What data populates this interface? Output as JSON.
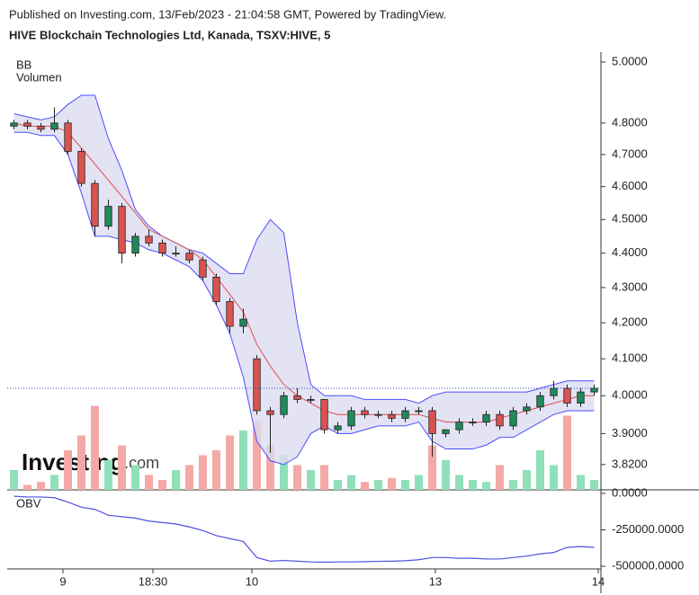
{
  "header": {
    "published": "Published on Investing.com, 13/Feb/2023 - 21:04:58 GMT, Powered by TradingView.",
    "symbol": "HIVE Blockchain Technologies Ltd, Kanada, TSXV:HIVE, 5"
  },
  "chart_data": [
    {
      "type": "candlestick",
      "indicators": [
        "BB",
        "Volumen"
      ],
      "watermark": {
        "brand": "Investing",
        "suffix": ".com"
      },
      "log_scale": true,
      "xlim": [
        0,
        44
      ],
      "ylim": [
        3.756,
        5.033
      ],
      "yticks": [
        {
          "value": 5,
          "label": "5.0000"
        },
        {
          "value": 4.8,
          "label": "4.8000"
        },
        {
          "value": 4.7,
          "label": "4.7000"
        },
        {
          "value": 4.6,
          "label": "4.6000"
        },
        {
          "value": 4.5,
          "label": "4.5000"
        },
        {
          "value": 4.4,
          "label": "4.4000"
        },
        {
          "value": 4.3,
          "label": "4.3000"
        },
        {
          "value": 4.2,
          "label": "4.2000"
        },
        {
          "value": 4.1,
          "label": "4.1000"
        },
        {
          "value": 4,
          "label": "4.0000"
        },
        {
          "value": 3.9,
          "label": "3.9000"
        },
        {
          "value": 3.82,
          "label": "3.8200"
        }
      ],
      "up_color": "#1f8a5b",
      "down_color": "#d9534f",
      "open": [
        4.79,
        4.8,
        4.79,
        4.78,
        4.8,
        4.71,
        4.61,
        4.48,
        4.54,
        4.4,
        4.45,
        4.43,
        4.4,
        4.4,
        4.38,
        4.33,
        4.26,
        4.19,
        4.1,
        3.96,
        3.95,
        4.0,
        3.99,
        3.99,
        3.91,
        3.92,
        3.96,
        3.95,
        3.95,
        3.94,
        3.96,
        3.96,
        3.9,
        3.91,
        3.93,
        3.93,
        3.95,
        3.92,
        3.96,
        3.97,
        4.0,
        4.02,
        3.98,
        4.01
      ],
      "high": [
        4.81,
        4.81,
        4.8,
        4.85,
        4.81,
        4.72,
        4.62,
        4.56,
        4.55,
        4.46,
        4.47,
        4.44,
        4.42,
        4.41,
        4.39,
        4.34,
        4.27,
        4.24,
        4.11,
        3.97,
        4.01,
        4.02,
        4.0,
        3.99,
        3.93,
        3.97,
        3.97,
        3.96,
        3.96,
        3.97,
        3.97,
        3.97,
        3.91,
        3.94,
        3.94,
        3.96,
        3.96,
        3.97,
        3.98,
        4.01,
        4.04,
        4.03,
        4.02,
        4.03
      ],
      "low": [
        4.78,
        4.78,
        4.77,
        4.77,
        4.7,
        4.6,
        4.45,
        4.47,
        4.37,
        4.39,
        4.42,
        4.39,
        4.39,
        4.37,
        4.32,
        4.25,
        4.17,
        4.17,
        3.95,
        3.85,
        3.94,
        3.98,
        3.98,
        3.9,
        3.9,
        3.91,
        3.94,
        3.94,
        3.93,
        3.93,
        3.95,
        3.84,
        3.89,
        3.9,
        3.92,
        3.92,
        3.91,
        3.91,
        3.95,
        3.96,
        3.99,
        3.97,
        3.97,
        4.0
      ],
      "close": [
        4.8,
        4.79,
        4.78,
        4.8,
        4.71,
        4.61,
        4.48,
        4.54,
        4.4,
        4.45,
        4.43,
        4.4,
        4.4,
        4.38,
        4.33,
        4.26,
        4.19,
        4.21,
        3.96,
        3.95,
        4.0,
        3.99,
        3.99,
        3.91,
        3.92,
        3.96,
        3.95,
        3.95,
        3.94,
        3.96,
        3.96,
        3.9,
        3.91,
        3.93,
        3.93,
        3.95,
        3.92,
        3.96,
        3.97,
        4.0,
        4.02,
        3.98,
        4.01,
        4.02
      ],
      "bands": {
        "color": "#4d4dff",
        "fill": "#dcdcf0",
        "middle_color": "#e05050",
        "upper": [
          4.83,
          4.82,
          4.81,
          4.82,
          4.86,
          4.89,
          4.89,
          4.75,
          4.65,
          4.53,
          4.48,
          4.45,
          4.43,
          4.41,
          4.4,
          4.37,
          4.34,
          4.34,
          4.44,
          4.5,
          4.46,
          4.2,
          4.03,
          4.0,
          4.0,
          4.0,
          3.99,
          3.99,
          3.99,
          3.99,
          3.98,
          4.0,
          4.01,
          4.01,
          4.01,
          4.01,
          4.01,
          4.01,
          4.01,
          4.02,
          4.03,
          4.04,
          4.04,
          4.04
        ],
        "middle": [
          4.8,
          4.79,
          4.79,
          4.79,
          4.77,
          4.72,
          4.67,
          4.62,
          4.57,
          4.52,
          4.47,
          4.45,
          4.43,
          4.41,
          4.38,
          4.33,
          4.28,
          4.23,
          4.14,
          4.08,
          4.03,
          4.0,
          3.98,
          3.96,
          3.95,
          3.95,
          3.95,
          3.95,
          3.95,
          3.95,
          3.95,
          3.94,
          3.93,
          3.93,
          3.93,
          3.93,
          3.94,
          3.95,
          3.96,
          3.97,
          3.98,
          3.99,
          4.0,
          4.0
        ],
        "lower": [
          4.77,
          4.77,
          4.76,
          4.76,
          4.7,
          4.58,
          4.45,
          4.45,
          4.44,
          4.43,
          4.41,
          4.4,
          4.38,
          4.36,
          4.32,
          4.25,
          4.17,
          4.05,
          3.88,
          3.83,
          3.82,
          3.84,
          3.9,
          3.92,
          3.9,
          3.9,
          3.91,
          3.92,
          3.92,
          3.92,
          3.93,
          3.88,
          3.86,
          3.86,
          3.86,
          3.87,
          3.89,
          3.89,
          3.91,
          3.93,
          3.95,
          3.96,
          3.96,
          3.96
        ]
      },
      "volume": {
        "up_color": "#8fe0b8",
        "down_color": "#f4a9a6",
        "volume_lim": [
          0,
          100000
        ],
        "values": [
          20000,
          5000,
          8000,
          15000,
          40000,
          55000,
          85000,
          30000,
          45000,
          25000,
          15000,
          10000,
          20000,
          25000,
          35000,
          40000,
          55000,
          60000,
          70000,
          45000,
          35000,
          25000,
          20000,
          25000,
          10000,
          15000,
          8000,
          10000,
          12000,
          10000,
          15000,
          45000,
          30000,
          15000,
          10000,
          8000,
          25000,
          10000,
          20000,
          40000,
          25000,
          75000,
          15000,
          10000
        ]
      }
    },
    {
      "type": "line",
      "name": "OBV",
      "color": "#5050e0",
      "xlim": [
        0,
        44
      ],
      "ylim": [
        -518000,
        24000
      ],
      "yticks": [
        {
          "value": 0,
          "label": "0.0000"
        },
        {
          "value": -250000,
          "label": "-250000.0000"
        },
        {
          "value": -500000,
          "label": "-500000.0000"
        }
      ],
      "xticks": [
        {
          "value": 4.13,
          "label": "9"
        },
        {
          "value": 10.8,
          "label": "18:30"
        },
        {
          "value": 18.13,
          "label": "10"
        },
        {
          "value": 31.73,
          "label": "13"
        },
        {
          "value": 43.8,
          "label": "14"
        }
      ],
      "values": [
        -20000,
        -25000,
        -25000,
        -30000,
        -60000,
        -95000,
        -110000,
        -150000,
        -160000,
        -170000,
        -190000,
        -200000,
        -210000,
        -230000,
        -255000,
        -290000,
        -310000,
        -330000,
        -440000,
        -465000,
        -460000,
        -465000,
        -470000,
        -472000,
        -470000,
        -470000,
        -468000,
        -466000,
        -465000,
        -462000,
        -455000,
        -440000,
        -440000,
        -445000,
        -445000,
        -450000,
        -450000,
        -440000,
        -430000,
        -415000,
        -405000,
        -370000,
        -365000,
        -370000
      ]
    }
  ]
}
